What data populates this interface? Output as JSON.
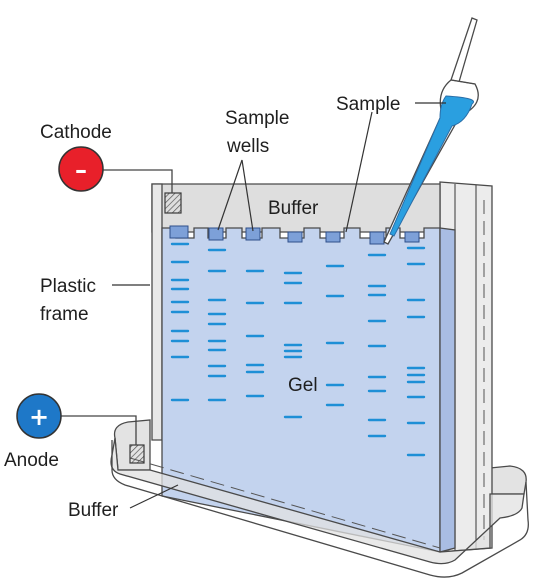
{
  "labels": {
    "cathode": "Cathode",
    "cathode_symbol": "–",
    "anode": "Anode",
    "anode_symbol": "+",
    "sample_wells_line1": "Sample",
    "sample_wells_line2": "wells",
    "sample": "Sample",
    "buffer_top": "Buffer",
    "buffer_bottom": "Buffer",
    "plastic_frame_line1": "Plastic",
    "plastic_frame_line2": "frame",
    "gel": "Gel"
  },
  "colors": {
    "cathode": "#e8202a",
    "anode": "#1e78c8",
    "gel": "#c3d3ee",
    "band": "#1e8fd6",
    "sample_liquid": "#2a9fe0",
    "frame_grey": "#dcdcdc",
    "buffer_grey": "#d9d9d9"
  },
  "icons": {
    "cathode": "minus-circle-icon",
    "anode": "plus-circle-icon",
    "pipette": "pipette-icon"
  }
}
